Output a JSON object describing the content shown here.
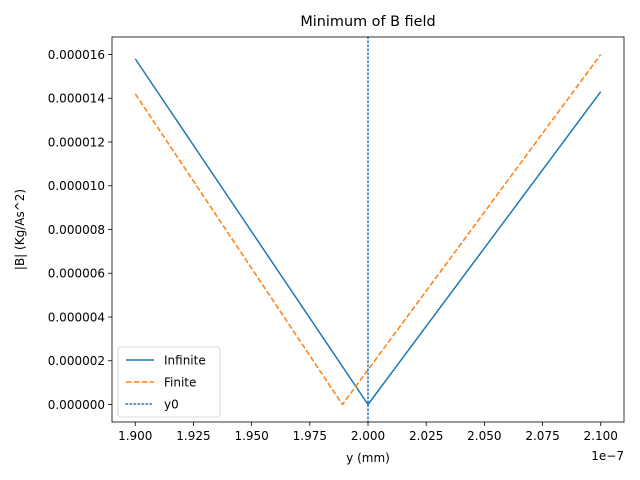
{
  "chart_data": {
    "type": "line",
    "title": "Minimum of B field",
    "xlabel": "y (mm)",
    "ylabel": "|B| (Kg/As^2)",
    "x_offset_label": "1e−7",
    "x_scale": 1e-07,
    "xlim": [
      1.89,
      2.11
    ],
    "ylim": [
      -8e-07,
      1.68e-05
    ],
    "x_ticks": [
      1.9,
      1.925,
      1.95,
      1.975,
      2.0,
      2.025,
      2.05,
      2.075,
      2.1
    ],
    "x_tick_labels": [
      "1.900",
      "1.925",
      "1.950",
      "1.975",
      "2.000",
      "2.025",
      "2.050",
      "2.075",
      "2.100"
    ],
    "y_ticks": [
      0,
      2e-06,
      4e-06,
      6e-06,
      8e-06,
      1e-05,
      1.2e-05,
      1.4e-05,
      1.6e-05
    ],
    "y_tick_labels": [
      "0.000000",
      "0.000002",
      "0.000004",
      "0.000006",
      "0.000008",
      "0.000010",
      "0.000012",
      "0.000014",
      "0.000016"
    ],
    "grid": false,
    "legend_position": "lower-left",
    "series": [
      {
        "name": "Infinite",
        "style": "solid",
        "color": "#1f77b4",
        "x": [
          1.9,
          2.0,
          2.1
        ],
        "y": [
          1.58e-05,
          0.0,
          1.43e-05
        ]
      },
      {
        "name": "Finite",
        "style": "dashed",
        "color": "#ff7f0e",
        "x": [
          1.9,
          1.989,
          2.1
        ],
        "y": [
          1.42e-05,
          0.0,
          1.6e-05
        ]
      }
    ],
    "vlines": [
      {
        "name": "y0",
        "style": "dotted",
        "color": "#1f77b4",
        "x": 2.0
      }
    ]
  }
}
